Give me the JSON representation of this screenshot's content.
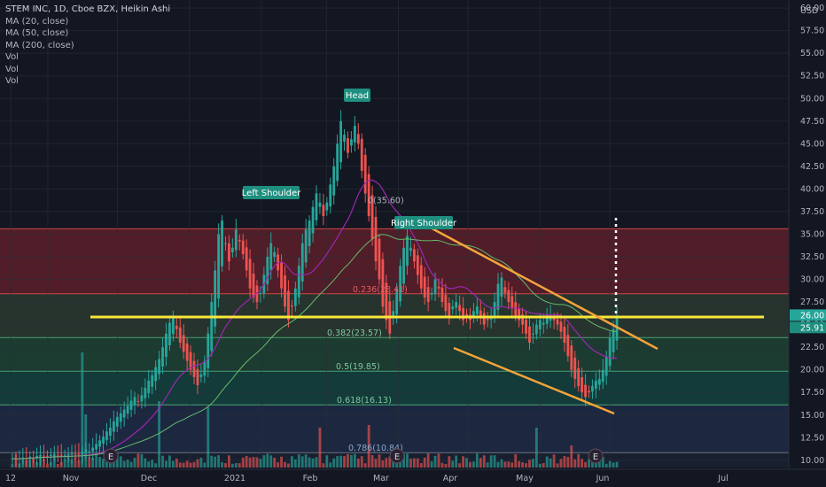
{
  "header": {
    "symbol_line": "STEM INC, 1D, Cboe BZX, Heikin Ashi",
    "indicators": [
      "MA (20, close)",
      "MA (50, close)",
      "MA (200, close)",
      "Vol",
      "Vol",
      "Vol"
    ]
  },
  "chart_data": {
    "type": "candlestick",
    "y_axis": {
      "unit": "USD",
      "range": [
        9.2,
        60.5
      ],
      "ticks": [
        "60.00",
        "57.50",
        "55.00",
        "52.50",
        "50.00",
        "47.50",
        "45.00",
        "42.50",
        "40.00",
        "37.50",
        "35.00",
        "32.50",
        "30.00",
        "27.50",
        "25.00",
        "22.50",
        "20.00",
        "17.50",
        "15.00",
        "12.50",
        "10.00"
      ]
    },
    "x_axis": {
      "labels": [
        {
          "text": "12",
          "x": 0
        },
        {
          "text": "Nov",
          "x": 16
        },
        {
          "text": "Dec",
          "x": 46
        },
        {
          "text": "2021",
          "x": 77
        },
        {
          "text": "Feb",
          "x": 108
        },
        {
          "text": "Mar",
          "x": 136
        },
        {
          "text": "Apr",
          "x": 167
        },
        {
          "text": "May",
          "x": 197
        },
        {
          "text": "Jun",
          "x": 228
        },
        {
          "text": "Jul",
          "x": 258
        }
      ]
    },
    "price_labels": {
      "last_high": "26.00",
      "last_close": "25.91"
    },
    "fibonacci": [
      {
        "label": "0.236(28.41)",
        "price": 28.41
      },
      {
        "label": "0.382(23.57)",
        "price": 23.57
      },
      {
        "label": "0.5(19.85)",
        "price": 19.85
      },
      {
        "label": "0.618(16.13)",
        "price": 16.13
      },
      {
        "label": "0.786(10.84)",
        "price": 10.84
      },
      {
        "label": "0(35.60)",
        "price": 35.6
      }
    ],
    "annotations": [
      "Head",
      "Left Shoulder",
      "Right Shoulder"
    ],
    "earnings_markers": [
      "E",
      "E",
      "E"
    ],
    "colors": {
      "up": "#26a69a",
      "down": "#ef5350",
      "ma20": "#9c27b0",
      "ma50": "#66bb6a",
      "yellow": "#f7e63a",
      "orange": "#f4a43a"
    },
    "ohlc_closes": [
      10.2,
      10.1,
      10.2,
      10.3,
      10.2,
      10.4,
      10.3,
      10.5,
      10.6,
      10.5,
      10.4,
      10.6,
      10.7,
      10.6,
      10.5,
      10.6,
      10.7,
      10.8,
      10.7,
      10.6,
      10.9,
      11.2,
      11.0,
      11.4,
      11.8,
      12.2,
      12.6,
      13.2,
      13.6,
      14.3,
      14.8,
      15.2,
      15.6,
      16.0,
      16.6,
      17.0,
      16.5,
      17.2,
      18.0,
      18.8,
      19.4,
      20.3,
      21.2,
      22.5,
      24.0,
      25.2,
      25.8,
      24.5,
      23.0,
      22.0,
      21.0,
      20.0,
      19.2,
      18.3,
      19.5,
      21.0,
      24.0,
      27.5,
      31.0,
      35.0,
      36.5,
      34.0,
      32.0,
      33.5,
      35.5,
      34.2,
      32.8,
      31.0,
      29.0,
      28.0,
      27.5,
      28.5,
      30.5,
      32.5,
      34.0,
      33.0,
      31.0,
      29.0,
      27.0,
      25.5,
      27.0,
      29.0,
      31.5,
      34.0,
      35.5,
      36.5,
      38.0,
      39.5,
      38.5,
      37.0,
      38.5,
      40.5,
      42.5,
      45.0,
      47.5,
      46.0,
      44.0,
      45.5,
      47.0,
      45.0,
      42.0,
      39.5,
      37.0,
      34.5,
      32.0,
      30.0,
      27.0,
      25.5,
      24.0,
      26.5,
      29.0,
      31.5,
      33.5,
      34.8,
      33.5,
      32.0,
      30.5,
      29.0,
      28.0,
      27.5,
      28.5,
      30.0,
      29.0,
      27.5,
      26.5,
      26.0,
      27.0,
      27.5,
      26.5,
      25.5,
      26.0,
      25.5,
      26.5,
      27.0,
      26.0,
      25.0,
      25.5,
      26.0,
      27.5,
      29.5,
      30.2,
      28.5,
      27.5,
      26.8,
      26.0,
      25.5,
      25.0,
      24.0,
      23.0,
      24.0,
      25.0,
      25.5,
      25.2,
      25.8,
      26.0,
      25.5,
      25.0,
      24.2,
      23.0,
      21.5,
      20.0,
      19.0,
      18.2,
      17.5,
      17.0,
      17.5,
      18.2,
      18.8,
      19.0,
      20.0,
      21.5,
      23.5,
      24.5,
      25.9
    ]
  }
}
